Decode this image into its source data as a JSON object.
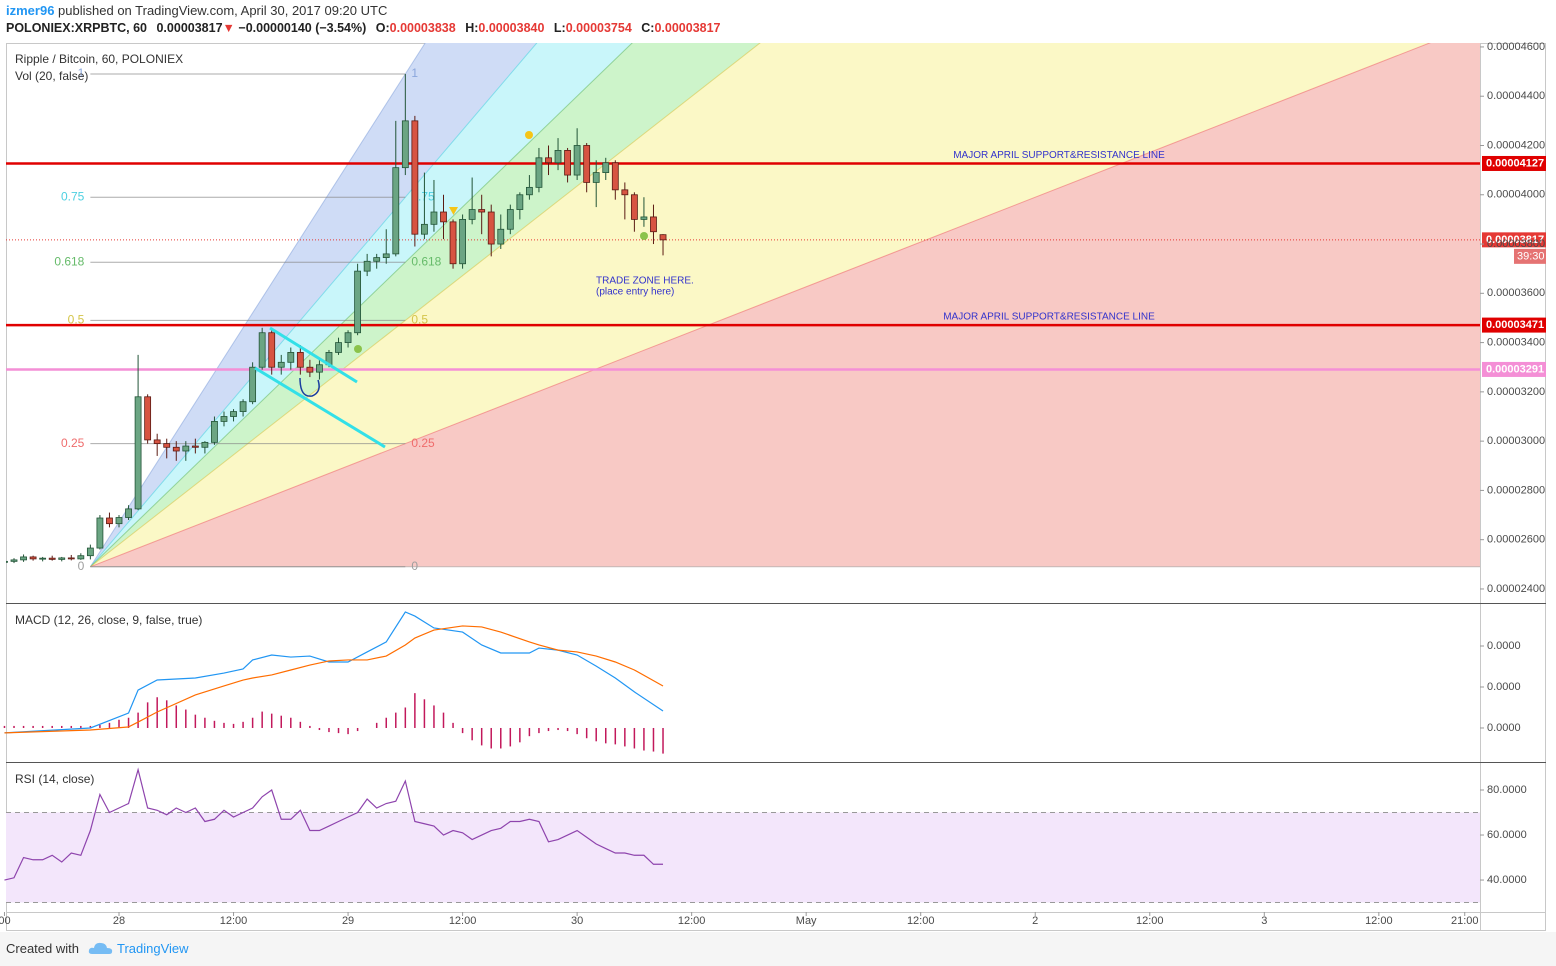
{
  "header": {
    "user": "izmer96",
    "published": "published on TradingView.com, April 30, 2017 09:20 UTC",
    "symbol": "POLONIEX:XRPBTC, 60",
    "last": "0.00003817",
    "arrow": "▼",
    "change": "−0.00000140 (−3.54%)",
    "ohlc": [
      {
        "key": "O:",
        "value": "0.00003838"
      },
      {
        "key": "H:",
        "value": "0.00003840"
      },
      {
        "key": "L:",
        "value": "0.00003754"
      },
      {
        "key": "C:",
        "value": "0.00003817"
      }
    ]
  },
  "chart_data": [
    {
      "type": "candlestick",
      "title": "Ripple / Bitcoin, 60, POLONIEX",
      "indicator": "Vol (20, false)",
      "x": [
        -12,
        -11,
        -10,
        -9,
        -8,
        -7,
        -6,
        -5,
        -4,
        -3,
        -2,
        -1,
        0,
        1,
        2,
        3,
        4,
        5,
        6,
        7,
        8,
        9,
        10,
        11,
        12,
        13,
        14,
        15,
        16,
        17,
        18,
        19,
        20,
        21,
        22,
        23,
        24,
        25,
        26,
        27,
        28,
        29,
        30,
        31,
        32,
        33,
        34,
        35,
        36,
        37,
        38,
        39,
        40,
        41,
        42,
        43,
        44,
        45,
        46,
        47,
        48,
        49,
        50,
        51,
        52,
        53,
        54,
        55,
        56,
        57
      ],
      "open": [
        2.51e-05,
        2.512e-05,
        2.518e-05,
        2.53e-05,
        2.522e-05,
        2.525e-05,
        2.52e-05,
        2.526e-05,
        2.522e-05,
        2.535e-05,
        2.566e-05,
        2.688e-05,
        2.665e-05,
        2.69e-05,
        2.725e-05,
        3.18e-05,
        3.005e-05,
        2.99e-05,
        2.975e-05,
        2.96e-05,
        2.98e-05,
        2.975e-05,
        2.995e-05,
        3.08e-05,
        3.1e-05,
        3.12e-05,
        3.16e-05,
        3.3e-05,
        3.44e-05,
        3.3e-05,
        3.32e-05,
        3.36e-05,
        3.3e-05,
        3.28e-05,
        3.31e-05,
        3.36e-05,
        3.4e-05,
        3.44e-05,
        3.69e-05,
        3.73e-05,
        3.745e-05,
        3.76e-05,
        4.11e-05,
        4.3e-05,
        3.84e-05,
        3.88e-05,
        3.93e-05,
        3.89e-05,
        3.72e-05,
        3.9e-05,
        3.94e-05,
        3.93e-05,
        3.8e-05,
        3.86e-05,
        3.94e-05,
        4e-05,
        4.03e-05,
        4.15e-05,
        4.13e-05,
        4.18e-05,
        4.08e-05,
        4.2e-05,
        4.05e-05,
        4.09e-05,
        4.13e-05,
        4.02e-05,
        4e-05,
        3.9e-05,
        3.91e-05,
        3.838e-05
      ],
      "high": [
        2.52e-05,
        2.525e-05,
        2.54e-05,
        2.535e-05,
        2.53e-05,
        2.535e-05,
        2.53e-05,
        2.538e-05,
        2.545e-05,
        2.58e-05,
        2.7e-05,
        2.71e-05,
        2.7e-05,
        2.74e-05,
        3.35e-05,
        3.19e-05,
        3.03e-05,
        3.01e-05,
        3e-05,
        3e-05,
        3.01e-05,
        3e-05,
        3.1e-05,
        3.12e-05,
        3.13e-05,
        3.17e-05,
        3.32e-05,
        3.46e-05,
        3.46e-05,
        3.35e-05,
        3.38e-05,
        3.39e-05,
        3.33e-05,
        3.33e-05,
        3.37e-05,
        3.42e-05,
        3.45e-05,
        3.72e-05,
        3.76e-05,
        3.76e-05,
        3.86e-05,
        4.3e-05,
        4.49e-05,
        4.32e-05,
        4.09e-05,
        4.06e-05,
        4e-05,
        3.9e-05,
        3.92e-05,
        4.07e-05,
        4e-05,
        3.96e-05,
        3.92e-05,
        3.96e-05,
        4.01e-05,
        4.08e-05,
        4.19e-05,
        4.2e-05,
        4.23e-05,
        4.19e-05,
        4.27e-05,
        4.21e-05,
        4.14e-05,
        4.15e-05,
        4.14e-05,
        4.05e-05,
        4.01e-05,
        3.99e-05,
        3.96e-05,
        3.84e-05
      ],
      "low": [
        2.5e-05,
        2.505e-05,
        2.51e-05,
        2.515e-05,
        2.512e-05,
        2.515e-05,
        2.512e-05,
        2.516e-05,
        2.518e-05,
        2.52e-05,
        2.56e-05,
        2.65e-05,
        2.65e-05,
        2.68e-05,
        2.72e-05,
        2.99e-05,
        2.94e-05,
        2.93e-05,
        2.92e-05,
        2.92e-05,
        2.95e-05,
        2.95e-05,
        2.985e-05,
        3.06e-05,
        3.08e-05,
        3.1e-05,
        3.15e-05,
        3.29e-05,
        3.27e-05,
        3.27e-05,
        3.29e-05,
        3.27e-05,
        3.26e-05,
        3.25e-05,
        3.3e-05,
        3.35e-05,
        3.38e-05,
        3.43e-05,
        3.67e-05,
        3.7e-05,
        3.72e-05,
        3.75e-05,
        4.08e-05,
        3.79e-05,
        3.82e-05,
        3.85e-05,
        3.82e-05,
        3.7e-05,
        3.7e-05,
        3.88e-05,
        3.84e-05,
        3.75e-05,
        3.78e-05,
        3.84e-05,
        3.9e-05,
        3.98e-05,
        4.01e-05,
        4.08e-05,
        4.1e-05,
        4.05e-05,
        4.06e-05,
        4.01e-05,
        3.95e-05,
        4.06e-05,
        3.98e-05,
        3.9e-05,
        3.85e-05,
        3.87e-05,
        3.8e-05,
        3.754e-05
      ],
      "close": [
        2.512e-05,
        2.518e-05,
        2.53e-05,
        2.522e-05,
        2.525e-05,
        2.52e-05,
        2.526e-05,
        2.522e-05,
        2.535e-05,
        2.566e-05,
        2.688e-05,
        2.665e-05,
        2.69e-05,
        2.725e-05,
        3.18e-05,
        3.005e-05,
        2.99e-05,
        2.975e-05,
        2.96e-05,
        2.98e-05,
        2.975e-05,
        2.995e-05,
        3.08e-05,
        3.1e-05,
        3.12e-05,
        3.16e-05,
        3.3e-05,
        3.44e-05,
        3.3e-05,
        3.32e-05,
        3.36e-05,
        3.3e-05,
        3.28e-05,
        3.31e-05,
        3.36e-05,
        3.4e-05,
        3.44e-05,
        3.69e-05,
        3.73e-05,
        3.745e-05,
        3.76e-05,
        4.11e-05,
        4.3e-05,
        3.84e-05,
        3.88e-05,
        3.93e-05,
        3.89e-05,
        3.72e-05,
        3.9e-05,
        3.94e-05,
        3.93e-05,
        3.8e-05,
        3.86e-05,
        3.94e-05,
        4e-05,
        4.03e-05,
        4.15e-05,
        4.13e-05,
        4.18e-05,
        4.08e-05,
        4.2e-05,
        4.05e-05,
        4.09e-05,
        4.13e-05,
        4.02e-05,
        4e-05,
        3.9e-05,
        3.91e-05,
        3.85e-05,
        3.817e-05
      ],
      "up_color": "#6ba583",
      "down_color": "#d75442",
      "up_border": "#225437",
      "down_border": "#5b1a13",
      "xlim": [
        -11.84,
        142.6
      ],
      "xticks": [
        {
          "value": -12,
          "label": "00"
        },
        {
          "value": 0,
          "label": "28"
        },
        {
          "value": 12,
          "label": "12:00"
        },
        {
          "value": 24,
          "label": "29"
        },
        {
          "value": 36,
          "label": "12:00"
        },
        {
          "value": 48,
          "label": "30"
        },
        {
          "value": 60,
          "label": "12:00"
        },
        {
          "value": 72,
          "label": "May"
        },
        {
          "value": 84,
          "label": "12:00"
        },
        {
          "value": 96,
          "label": "2"
        },
        {
          "value": 108,
          "label": "12:00"
        },
        {
          "value": 120,
          "label": "3"
        },
        {
          "value": 132,
          "label": "12:00"
        },
        {
          "value": 141,
          "label": "21:00"
        }
      ],
      "ylim": [
        2.343e-05,
        4.616e-05
      ],
      "yticks": [
        {
          "value": 2.4e-05,
          "label": "0.00002400"
        },
        {
          "value": 2.6e-05,
          "label": "0.00002600"
        },
        {
          "value": 2.8e-05,
          "label": "0.00002800"
        },
        {
          "value": 3e-05,
          "label": "0.00003000"
        },
        {
          "value": 3.2e-05,
          "label": "0.00003200"
        },
        {
          "value": 3.4e-05,
          "label": "0.00003400"
        },
        {
          "value": 3.6e-05,
          "label": "0.00003600"
        },
        {
          "value": 3.8e-05,
          "label": "0.00003800"
        },
        {
          "value": 4e-05,
          "label": "0.00004000"
        },
        {
          "value": 4.2e-05,
          "label": "0.00004200"
        },
        {
          "value": 4.4e-05,
          "label": "0.00004400"
        },
        {
          "value": 4.6e-05,
          "label": "0.00004600"
        }
      ],
      "hlines": [
        {
          "value": 4.127e-05,
          "color": "#e00000",
          "text": "MAJOR APRIL SUPPORT&RESISTANCE LINE"
        },
        {
          "value": 3.471e-05,
          "color": "#e00000",
          "text": "MAJOR APRIL SUPPORT&RESISTANCE LINE"
        },
        {
          "value": 3.291e-05,
          "color": "#f48fd6"
        }
      ],
      "countdown": "39:30",
      "last_color": "#e53935",
      "fib": {
        "x0": -3,
        "y0": 2.49e-05,
        "x1": 30,
        "y1": 4.49e-05,
        "levels": [
          1,
          0.75,
          0.618,
          0.5,
          0.25,
          0
        ],
        "label_colors": [
          "#8aa6dc",
          "#4dd0e1",
          "#66bb6a",
          "#d4c54a",
          "#ef6c6c",
          "#9e9e9e"
        ],
        "fills": [
          "#cfdcf6",
          "#c9f6fa",
          "#cdf4ca",
          "#fbf8c6",
          "#f8c9c5"
        ]
      },
      "annotations": [
        {
          "text": "TRADE ZONE HERE."
        },
        {
          "text": "(place entry here)"
        }
      ]
    },
    {
      "type": "line",
      "title": "MACD (12, 26, close, 9, false, true)",
      "x": [
        -12,
        -3,
        1,
        2,
        4,
        8,
        11,
        13,
        14,
        16,
        18,
        20,
        22,
        24,
        26,
        28,
        30,
        31,
        33,
        36,
        38,
        40,
        43,
        44,
        46,
        48,
        50,
        52,
        54,
        57
      ],
      "series": [
        {
          "color": "#2196f3",
          "values": [
            -2.4e-08,
            0,
            7.3e-08,
            1.85e-07,
            2.34e-07,
            2.44e-07,
            2.68e-07,
            2.88e-07,
            3.32e-07,
            3.56e-07,
            3.46e-07,
            3.51e-07,
            3.22e-07,
            3.22e-07,
            3.71e-07,
            4.2e-07,
            5.66e-07,
            5.46e-07,
            4.88e-07,
            4.68e-07,
            4.05e-07,
            3.66e-07,
            3.66e-07,
            3.9e-07,
            3.8e-07,
            3.56e-07,
            3.02e-07,
            2.44e-07,
            1.76e-07,
            8.3e-08
          ]
        },
        {
          "color": "#ff6d00",
          "values": [
            -2.4e-08,
            -1e-08,
            5e-09,
            2.9e-08,
            7.8e-08,
            1.61e-07,
            2.05e-07,
            2.34e-07,
            2.44e-07,
            2.59e-07,
            2.83e-07,
            3.07e-07,
            3.27e-07,
            3.32e-07,
            3.32e-07,
            3.51e-07,
            4.05e-07,
            4.39e-07,
            4.78e-07,
            4.98e-07,
            4.93e-07,
            4.68e-07,
            4.2e-07,
            4.05e-07,
            3.8e-07,
            3.71e-07,
            3.51e-07,
            3.22e-07,
            2.83e-07,
            2.05e-07
          ]
        }
      ],
      "histogram": {
        "color": "#c2185b",
        "x": [
          -12,
          -11,
          -10,
          -9,
          -8,
          -7,
          -6,
          -5,
          -4,
          -3,
          -2,
          -1,
          0,
          1,
          2,
          3,
          4,
          5,
          6,
          7,
          8,
          9,
          10,
          11,
          12,
          13,
          14,
          15,
          16,
          17,
          18,
          19,
          20,
          21,
          22,
          23,
          24,
          25,
          26,
          27,
          28,
          29,
          30,
          31,
          32,
          33,
          34,
          35,
          36,
          37,
          38,
          39,
          40,
          41,
          42,
          43,
          44,
          45,
          46,
          47,
          48,
          49,
          50,
          51,
          52,
          53,
          54,
          55,
          56,
          57
        ],
        "values": [
          1e-08,
          1e-08,
          1e-08,
          1e-08,
          1e-08,
          1e-08,
          1e-08,
          1e-08,
          1e-08,
          1e-08,
          1.5e-08,
          2.5e-08,
          4e-08,
          5e-08,
          7.5e-08,
          1.25e-07,
          1.5e-07,
          1.35e-07,
          1.1e-07,
          9e-08,
          6.5e-08,
          5e-08,
          3.5e-08,
          2.5e-08,
          2e-08,
          3e-08,
          5e-08,
          8e-08,
          7e-08,
          6e-08,
          5e-08,
          3e-08,
          1e-08,
          -1e-08,
          -2e-08,
          -2.5e-08,
          -3e-08,
          -1.5e-08,
          0,
          2.5e-08,
          5e-08,
          7.5e-08,
          1e-07,
          1.7e-07,
          1.4e-07,
          1.1e-07,
          7.5e-08,
          2.5e-08,
          -2.5e-08,
          -6e-08,
          -8.5e-08,
          -1e-07,
          -1e-07,
          -9e-08,
          -7e-08,
          -4e-08,
          -2.5e-08,
          -1.5e-08,
          -1e-08,
          -1.5e-08,
          -3e-08,
          -5e-08,
          -6.5e-08,
          -7.5e-08,
          -8e-08,
          -9e-08,
          -1e-07,
          -1.1e-07,
          -1.15e-07,
          -1.25e-07
        ]
      },
      "ylim": [
        -1.66e-07,
        6.05e-07
      ],
      "yticks": [
        {
          "value": 4e-07,
          "label": "0.0000"
        },
        {
          "value": 2e-07,
          "label": "0.0000"
        },
        {
          "value": 0,
          "label": "0.0000"
        }
      ]
    },
    {
      "type": "line",
      "title": "RSI (14, close)",
      "color": "#8e44ad",
      "x": [
        -12,
        -11,
        -10,
        -9,
        -8,
        -7,
        -6,
        -5,
        -4,
        -3,
        -2,
        -1,
        0,
        1,
        2,
        3,
        4,
        5,
        6,
        7,
        8,
        9,
        10,
        11,
        12,
        13,
        14,
        15,
        16,
        17,
        18,
        19,
        20,
        21,
        22,
        23,
        24,
        25,
        26,
        27,
        28,
        29,
        30,
        31,
        32,
        33,
        34,
        35,
        36,
        37,
        38,
        39,
        40,
        41,
        42,
        43,
        44,
        45,
        46,
        47,
        48,
        49,
        50,
        51,
        52,
        53,
        54,
        55,
        56,
        57
      ],
      "values": [
        40,
        41,
        50,
        49,
        49,
        51,
        48,
        52,
        51,
        62,
        78,
        70,
        72,
        74,
        89,
        72,
        71,
        69,
        72,
        70,
        72,
        66,
        67,
        71,
        68,
        70,
        72,
        77,
        80,
        67,
        67,
        71,
        62,
        62,
        64,
        66,
        68,
        70,
        76,
        72,
        74,
        75,
        84,
        66,
        65,
        64,
        60,
        62,
        61,
        58,
        60,
        62,
        63,
        66,
        66,
        67,
        66,
        57,
        58,
        60,
        62,
        59,
        56,
        54,
        52,
        52,
        51,
        51,
        47,
        47
      ],
      "bands": [
        30,
        70
      ],
      "band_color": "#f3e6fb",
      "ylim": [
        25.8,
        92
      ],
      "yticks": [
        {
          "value": 80,
          "label": "80.0000"
        },
        {
          "value": 60,
          "label": "60.0000"
        },
        {
          "value": 40,
          "label": "40.0000"
        }
      ]
    }
  ],
  "footer": {
    "created": "Created with",
    "brand": "TradingView"
  }
}
